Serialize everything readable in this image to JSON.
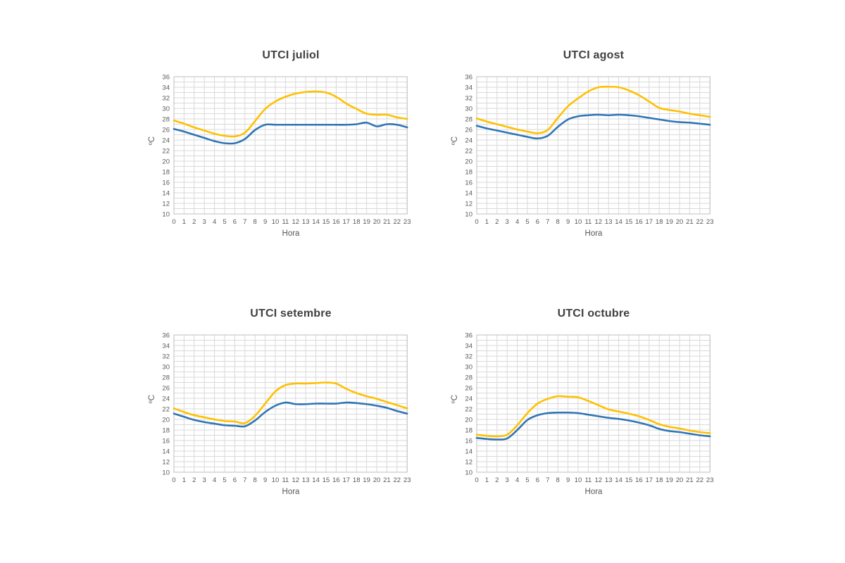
{
  "page": {
    "background": "#ffffff"
  },
  "style": {
    "series1_color": "#FFC000",
    "series2_color": "#2E75B6",
    "grid_color": "#D9D9D9",
    "border_color": "#BFBFBF",
    "tick_text_color": "#595959",
    "title_text_color": "#404040"
  },
  "chart_data": [
    {
      "type": "line",
      "title": "UTCI juliol",
      "xlabel": "Hora",
      "ylabel": "ºC",
      "x": [
        0,
        1,
        2,
        3,
        4,
        5,
        6,
        7,
        8,
        9,
        10,
        11,
        12,
        13,
        14,
        15,
        16,
        17,
        18,
        19,
        20,
        21,
        22,
        23
      ],
      "ylim": [
        10,
        36
      ],
      "y_tick_step": 2,
      "grid": true,
      "legend": "none",
      "series": [
        {
          "color": "#FFC000",
          "values": [
            27.7,
            27.1,
            26.4,
            25.8,
            25.2,
            24.8,
            24.7,
            25.4,
            27.6,
            29.9,
            31.3,
            32.2,
            32.8,
            33.1,
            33.2,
            33.0,
            32.2,
            30.9,
            29.9,
            29.0,
            28.8,
            28.8,
            28.3,
            28.0
          ]
        },
        {
          "color": "#2E75B6",
          "values": [
            26.1,
            25.6,
            25.0,
            24.4,
            23.8,
            23.4,
            23.4,
            24.2,
            25.9,
            26.9,
            26.9,
            26.9,
            26.9,
            26.9,
            26.9,
            26.9,
            26.9,
            26.9,
            27.0,
            27.3,
            26.6,
            27.0,
            26.9,
            26.4
          ]
        }
      ]
    },
    {
      "type": "line",
      "title": "UTCI agost",
      "xlabel": "Hora",
      "ylabel": "ºC",
      "x": [
        0,
        1,
        2,
        3,
        4,
        5,
        6,
        7,
        8,
        9,
        10,
        11,
        12,
        13,
        14,
        15,
        16,
        17,
        18,
        19,
        20,
        21,
        22,
        23
      ],
      "ylim": [
        10,
        36
      ],
      "y_tick_step": 2,
      "grid": true,
      "legend": "none",
      "series": [
        {
          "color": "#FFC000",
          "values": [
            28.1,
            27.5,
            27.0,
            26.5,
            26.0,
            25.6,
            25.3,
            25.9,
            28.2,
            30.4,
            31.9,
            33.2,
            34.0,
            34.1,
            34.0,
            33.4,
            32.5,
            31.3,
            30.1,
            29.7,
            29.4,
            29.0,
            28.7,
            28.4
          ]
        },
        {
          "color": "#2E75B6",
          "values": [
            26.7,
            26.2,
            25.8,
            25.4,
            25.0,
            24.6,
            24.3,
            24.8,
            26.5,
            27.9,
            28.5,
            28.7,
            28.8,
            28.7,
            28.8,
            28.7,
            28.5,
            28.2,
            27.9,
            27.6,
            27.4,
            27.3,
            27.1,
            26.9
          ]
        }
      ]
    },
    {
      "type": "line",
      "title": "UTCI setembre",
      "xlabel": "Hora",
      "ylabel": "ºC",
      "x": [
        0,
        1,
        2,
        3,
        4,
        5,
        6,
        7,
        8,
        9,
        10,
        11,
        12,
        13,
        14,
        15,
        16,
        17,
        18,
        19,
        20,
        21,
        22,
        23
      ],
      "ylim": [
        10,
        36
      ],
      "y_tick_step": 2,
      "grid": true,
      "legend": "none",
      "series": [
        {
          "color": "#FFC000",
          "values": [
            22.1,
            21.4,
            20.8,
            20.4,
            20.0,
            19.7,
            19.6,
            19.3,
            20.7,
            23.0,
            25.3,
            26.5,
            26.8,
            26.8,
            26.9,
            27.0,
            26.8,
            25.8,
            25.0,
            24.4,
            23.9,
            23.3,
            22.7,
            22.1
          ]
        },
        {
          "color": "#2E75B6",
          "values": [
            21.1,
            20.5,
            19.9,
            19.5,
            19.2,
            18.9,
            18.8,
            18.7,
            19.8,
            21.4,
            22.6,
            23.2,
            22.9,
            22.9,
            23.0,
            23.0,
            23.0,
            23.2,
            23.1,
            22.9,
            22.6,
            22.2,
            21.6,
            21.1
          ]
        }
      ]
    },
    {
      "type": "line",
      "title": "UTCI octubre",
      "xlabel": "Hora",
      "ylabel": "ºC",
      "x": [
        0,
        1,
        2,
        3,
        4,
        5,
        6,
        7,
        8,
        9,
        10,
        11,
        12,
        13,
        14,
        15,
        16,
        17,
        18,
        19,
        20,
        21,
        22,
        23
      ],
      "ylim": [
        10,
        36
      ],
      "y_tick_step": 2,
      "grid": true,
      "legend": "none",
      "series": [
        {
          "color": "#FFC000",
          "values": [
            17.1,
            16.9,
            16.8,
            17.1,
            18.9,
            21.2,
            23.0,
            23.9,
            24.4,
            24.3,
            24.2,
            23.5,
            22.7,
            21.9,
            21.5,
            21.1,
            20.6,
            19.9,
            19.1,
            18.6,
            18.3,
            17.9,
            17.6,
            17.4
          ]
        },
        {
          "color": "#2E75B6",
          "values": [
            16.5,
            16.3,
            16.2,
            16.4,
            18.0,
            19.9,
            20.8,
            21.2,
            21.3,
            21.3,
            21.2,
            20.9,
            20.6,
            20.3,
            20.1,
            19.8,
            19.4,
            18.9,
            18.2,
            17.8,
            17.6,
            17.3,
            17.0,
            16.8
          ]
        }
      ]
    }
  ]
}
